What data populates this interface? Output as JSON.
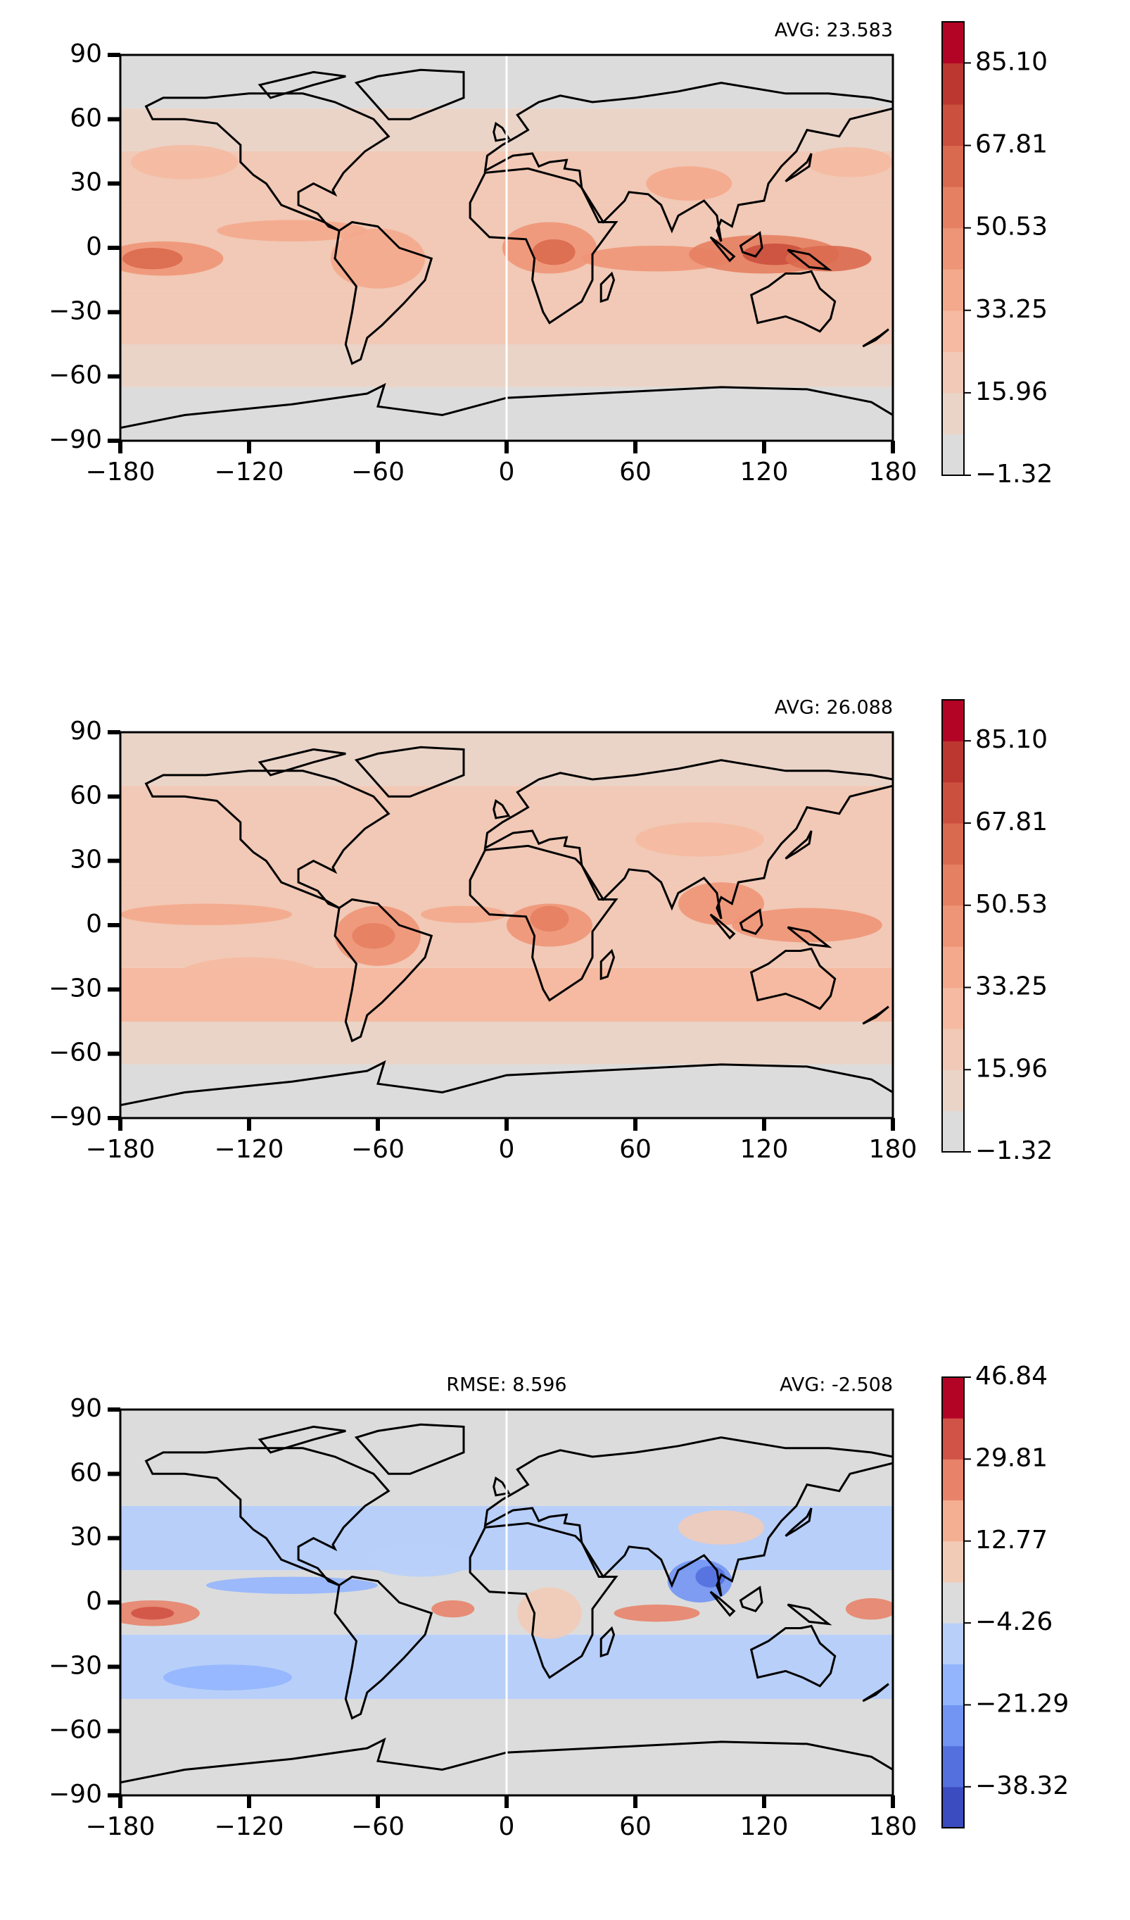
{
  "chart_data": [
    {
      "type": "contour-map",
      "annotations": [
        {
          "text": "AVG: 23.583",
          "loc": "right"
        }
      ],
      "xlim": [
        -180,
        180
      ],
      "ylim": [
        -90,
        90
      ],
      "xticks": [
        {
          "value": -180,
          "label": "−180"
        },
        {
          "value": -120,
          "label": "−120"
        },
        {
          "value": -60,
          "label": "−60"
        },
        0,
        60,
        120,
        180
      ],
      "yticks": [
        90,
        60,
        30,
        0,
        {
          "value": -30,
          "label": "−30"
        },
        {
          "value": -60,
          "label": "−60"
        },
        {
          "value": -90,
          "label": "−90"
        }
      ],
      "zero_line": true,
      "colorbar": {
        "clim": [
          -1.32,
          93.72
        ],
        "ticks": [
          {
            "value": -1.32,
            "label": "−1.32"
          },
          15.96,
          33.25,
          50.53,
          67.81,
          {
            "value": 85.1,
            "label": "85.10"
          }
        ],
        "colors": [
          "#dddcdc",
          "#ead4c8",
          "#f1c9b6",
          "#f5baa1",
          "#f4a98c",
          "#ef9577",
          "#e68062",
          "#da6a4f",
          "#cb503d",
          "#bb3730",
          "#b40426"
        ]
      }
    },
    {
      "type": "contour-map",
      "annotations": [
        {
          "text": "AVG: 26.088",
          "loc": "right"
        }
      ],
      "xlim": [
        -180,
        180
      ],
      "ylim": [
        -90,
        90
      ],
      "xticks": [
        {
          "value": -180,
          "label": "−180"
        },
        {
          "value": -120,
          "label": "−120"
        },
        {
          "value": -60,
          "label": "−60"
        },
        0,
        60,
        120,
        180
      ],
      "yticks": [
        90,
        60,
        30,
        0,
        {
          "value": -30,
          "label": "−30"
        },
        {
          "value": -60,
          "label": "−60"
        },
        {
          "value": -90,
          "label": "−90"
        }
      ],
      "zero_line": false,
      "colorbar": {
        "clim": [
          -1.32,
          93.72
        ],
        "ticks": [
          {
            "value": -1.32,
            "label": "−1.32"
          },
          15.96,
          33.25,
          50.53,
          67.81,
          {
            "value": 85.1,
            "label": "85.10"
          }
        ],
        "colors": [
          "#dddcdc",
          "#ead4c8",
          "#f1c9b6",
          "#f5baa1",
          "#f4a98c",
          "#ef9577",
          "#e68062",
          "#da6a4f",
          "#cb503d",
          "#bb3730",
          "#b40426"
        ]
      }
    },
    {
      "type": "contour-map",
      "annotations": [
        {
          "text": "RMSE: 8.596",
          "loc": "center"
        },
        {
          "text": "AVG: -2.508",
          "loc": "right"
        }
      ],
      "xlim": [
        -180,
        180
      ],
      "ylim": [
        -90,
        90
      ],
      "xticks": [
        {
          "value": -180,
          "label": "−180"
        },
        {
          "value": -120,
          "label": "−120"
        },
        {
          "value": -60,
          "label": "−60"
        },
        0,
        60,
        120,
        180
      ],
      "yticks": [
        90,
        60,
        30,
        0,
        {
          "value": -30,
          "label": "−30"
        },
        {
          "value": -60,
          "label": "−60"
        },
        {
          "value": -90,
          "label": "−90"
        }
      ],
      "zero_line": true,
      "colorbar": {
        "clim": [
          -46.84,
          46.84
        ],
        "ticks": [
          {
            "value": -38.32,
            "label": "−38.32"
          },
          {
            "value": -21.29,
            "label": "−21.29"
          },
          {
            "value": -4.26,
            "label": "−4.26"
          },
          12.77,
          29.81,
          46.84
        ],
        "colors": [
          "#3b4cc0",
          "#5470de",
          "#7295f4",
          "#93b5fe",
          "#b8cff9",
          "#dcdcdc",
          "#f2cbb7",
          "#f4ae92",
          "#e8836a",
          "#d15246",
          "#b40426"
        ]
      }
    }
  ]
}
